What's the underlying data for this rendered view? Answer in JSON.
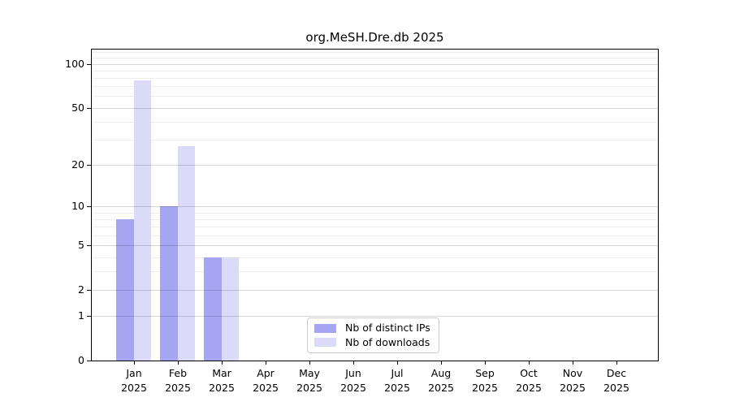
{
  "chart_data": {
    "type": "bar",
    "title": "org.MeSH.Dre.db 2025",
    "categories": [
      "Jan",
      "Feb",
      "Mar",
      "Apr",
      "May",
      "Jun",
      "Jul",
      "Aug",
      "Sep",
      "Oct",
      "Nov",
      "Dec"
    ],
    "year_label": "2025",
    "series": [
      {
        "name": "Nb of distinct IPs",
        "color": "#a5a5f2",
        "values": [
          8,
          10,
          4,
          0,
          0,
          0,
          0,
          0,
          0,
          0,
          0,
          0
        ]
      },
      {
        "name": "Nb of downloads",
        "color": "#dbdbf9",
        "values": [
          77,
          27,
          4,
          0,
          0,
          0,
          0,
          0,
          0,
          0,
          0,
          0
        ]
      }
    ],
    "y_ticks": [
      0,
      1,
      2,
      5,
      10,
      20,
      50,
      100
    ],
    "y_minor_ticks": [
      3,
      4,
      6,
      7,
      8,
      9,
      30,
      40,
      60,
      70,
      80,
      90,
      110,
      120
    ],
    "ylim": [
      0,
      125
    ],
    "y_scale": "log10(1+y)",
    "grid": true,
    "legend_position": "lower center inside",
    "colors": {
      "axis": "#000000",
      "grid_major": "rgba(0,0,0,0.16)",
      "grid_minor": "rgba(0,0,0,0.065)",
      "legend_border": "#cccccc"
    }
  }
}
